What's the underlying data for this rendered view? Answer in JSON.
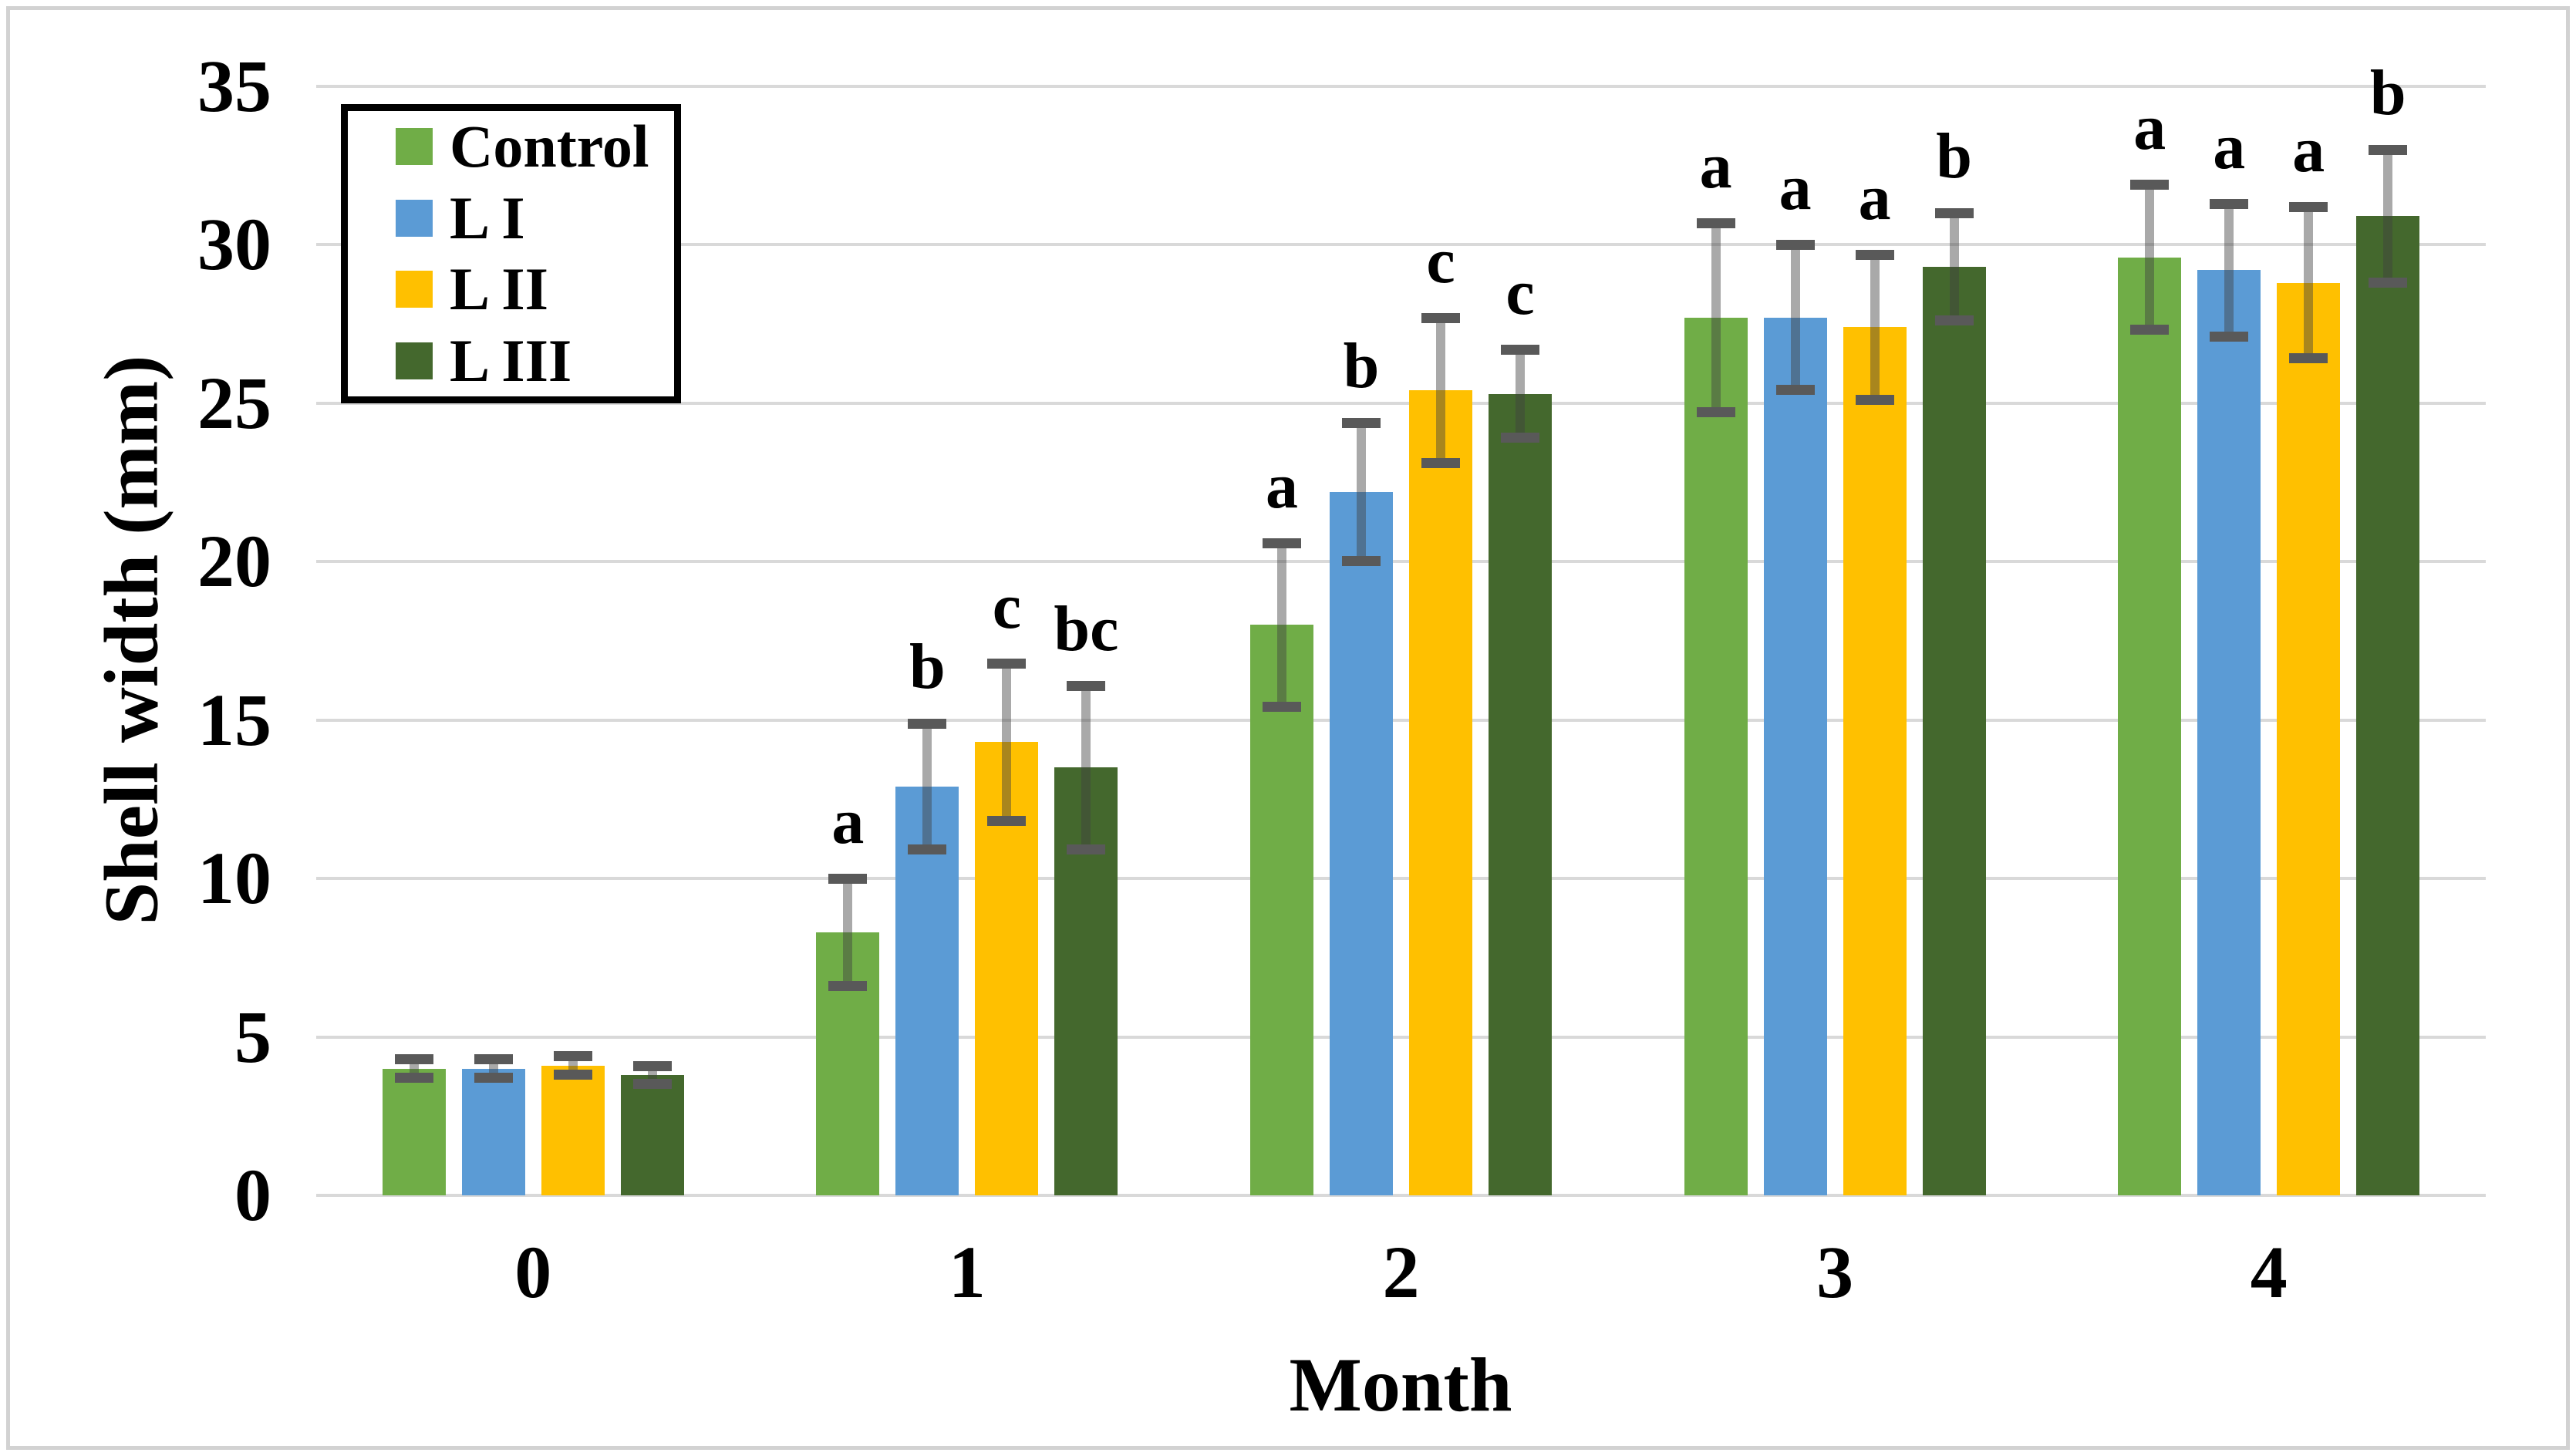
{
  "figure": {
    "background": "#ffffff",
    "border_color": "#d2d2d2",
    "gridline_color": "#d9d9d9",
    "error_bar_color": "#595959"
  },
  "chart_data": {
    "type": "bar",
    "title": "",
    "xlabel": "Month",
    "ylabel": "Shell width (mm)",
    "ylim": [
      0,
      35
    ],
    "ytick_step": 5,
    "yticks": [
      0,
      5,
      10,
      15,
      20,
      25,
      30,
      35
    ],
    "grid": "horizontal",
    "legend_position": "top-left-inside",
    "categories": [
      "0",
      "1",
      "2",
      "3",
      "4"
    ],
    "series": [
      {
        "name": "Control",
        "color": "#70AD47",
        "values": [
          4.0,
          8.3,
          18.0,
          27.7,
          29.6
        ],
        "errors": [
          0.3,
          1.7,
          2.6,
          3.0,
          2.3
        ],
        "letters": [
          "",
          "a",
          "a",
          "a",
          "a"
        ]
      },
      {
        "name": "L I",
        "color": "#5B9BD5",
        "values": [
          4.0,
          12.9,
          22.2,
          27.7,
          29.2
        ],
        "errors": [
          0.3,
          2.0,
          2.2,
          2.3,
          2.1
        ],
        "letters": [
          "",
          "b",
          "b",
          "a",
          "a"
        ]
      },
      {
        "name": "L II",
        "color": "#FFC000",
        "values": [
          4.1,
          14.3,
          25.4,
          27.4,
          28.8
        ],
        "errors": [
          0.3,
          2.5,
          2.3,
          2.3,
          2.4
        ],
        "letters": [
          "",
          "c",
          "c",
          "a",
          "a"
        ]
      },
      {
        "name": "L III",
        "color": "#44682D",
        "values": [
          3.8,
          13.5,
          25.3,
          29.3,
          30.9
        ],
        "errors": [
          0.3,
          2.6,
          1.4,
          1.7,
          2.1
        ],
        "letters": [
          "",
          "bc",
          "c",
          "b",
          "b"
        ]
      }
    ]
  }
}
